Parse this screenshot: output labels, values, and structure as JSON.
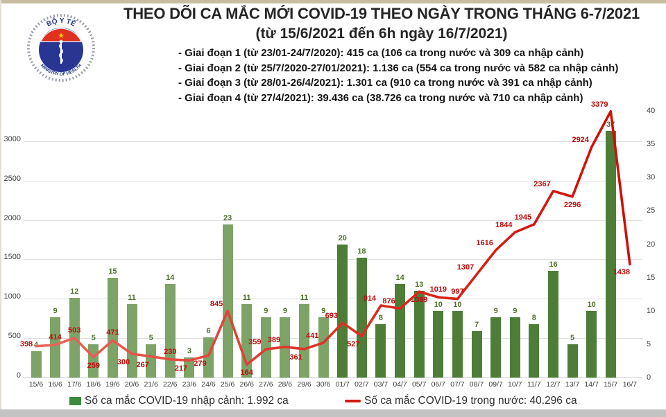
{
  "header": {
    "title_line1": "THEO DÕI CA MẮC MỚI COVID-19 THEO NGÀY TRONG THÁNG 6-7/2021",
    "title_line2": "(từ 15/6/2021 đến 6h ngày 16/7/2021)",
    "bullets": [
      "- Giai đoạn 1 (từ 23/01-24/7/2020): 415 ca (106 ca trong nước và 309 ca nhập cảnh)",
      "- Giai đoạn 2 (từ 25/7/2020-27/01/2021): 1.136 ca (554 ca trong nước và 582 ca nhập cảnh)",
      "- Giai đoạn 3 (từ 28/01-26/4/2021): 1.301 ca (910 ca trong nước và 391 ca nhập cảnh)",
      "- Giai đoạn 4 (từ 27/4/2021): 39.436 ca (38.726 ca trong nước và 710 ca nhập cảnh)"
    ]
  },
  "logo": {
    "top_text": "BỘ Y TẾ",
    "bottom_text": "MINISTRY OF HEALTH",
    "star": "★"
  },
  "chart_data": {
    "type": "bar+line combo",
    "categories": [
      "15/6",
      "16/6",
      "17/6",
      "18/6",
      "19/6",
      "20/6",
      "21/6",
      "22/6",
      "23/6",
      "24/6",
      "25/6",
      "26/6",
      "27/6",
      "28/6",
      "29/6",
      "30/6",
      "01/7",
      "02/7",
      "03/7",
      "04/7",
      "05/7",
      "06/7",
      "07/7",
      "08/7",
      "09/7",
      "10/7",
      "11/7",
      "12/7",
      "13/7",
      "14/7",
      "15/7",
      "16/7"
    ],
    "series": [
      {
        "name": "Số ca mắc COVID-19 nhập cảnh",
        "type": "bar",
        "axis": "right",
        "values": [
          4,
          9,
          12,
          5,
          15,
          11,
          5,
          14,
          3,
          6,
          23,
          11,
          9,
          9,
          11,
          9,
          20,
          18,
          8,
          14,
          13,
          10,
          10,
          7,
          9,
          9,
          8,
          16,
          5,
          10,
          37,
          null
        ],
        "color_june": "#7da367",
        "color_july": "#4e7d38"
      },
      {
        "name": "Số ca mắc COVID-19 trong nước",
        "type": "line",
        "axis": "left",
        "values": [
          398,
          414,
          503,
          259,
          471,
          300,
          267,
          230,
          217,
          279,
          845,
          164,
          359,
          389,
          361,
          441,
          693,
          527,
          914,
          876,
          1089,
          1019,
          997,
          1307,
          1616,
          1844,
          1945,
          2367,
          2296,
          2924,
          3379,
          1438
        ],
        "color": "#d32119",
        "label_hints": [
          "l",
          "a",
          "a",
          "b",
          "a",
          "bl",
          "bl",
          "a",
          "bl",
          "bl",
          "al",
          "b",
          "al",
          "al",
          "bl",
          "al",
          "al",
          "bl",
          "al",
          "al",
          "b",
          "a",
          "a",
          "al",
          "al",
          "al",
          "al",
          "al",
          "b",
          "al",
          "al",
          "bl"
        ]
      }
    ],
    "left_axis": {
      "ticks": [
        0,
        500,
        1000,
        1500,
        2000,
        2500,
        3000
      ],
      "range_at_plot_top": 3385
    },
    "right_axis": {
      "ticks": [
        0,
        5,
        10,
        15,
        20,
        25,
        30,
        35,
        40
      ],
      "max": 40
    },
    "grid": "horizontal, every 500 on left axis",
    "legend_position": "bottom",
    "legend": [
      {
        "swatch": "green-square",
        "label": "Số ca mắc COVID-19 nhập cảnh: 1.992 ca"
      },
      {
        "swatch": "red-line",
        "label": "Số ca mắc COVID-19 trong nước: 40.296 ca"
      }
    ]
  }
}
